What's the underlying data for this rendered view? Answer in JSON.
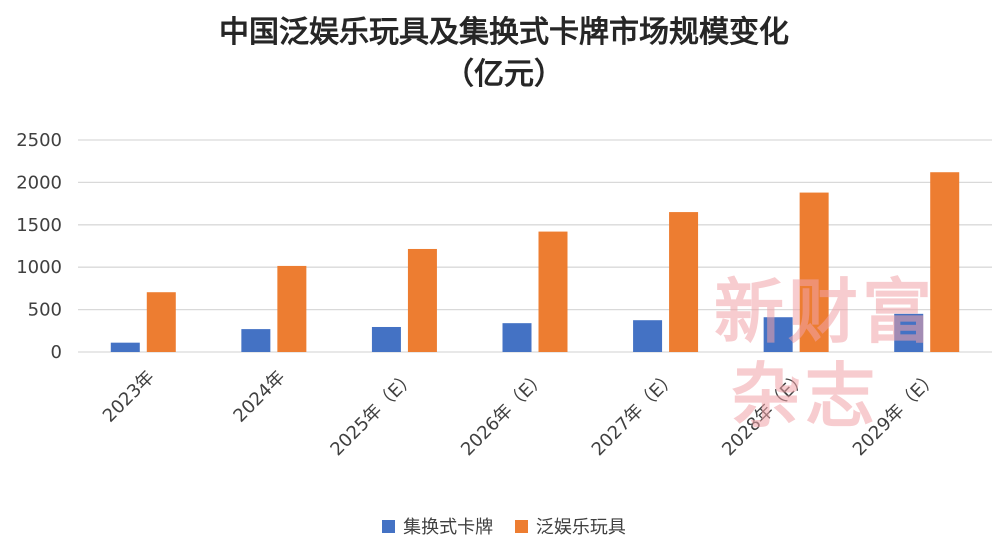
{
  "chart_data": {
    "type": "bar",
    "title": [
      "中国泛娱乐玩具及集换式卡牌市场规模变化",
      "（亿元）"
    ],
    "xlabel": "",
    "ylabel": "",
    "categories": [
      "2023年",
      "2024年",
      "2025年（E）",
      "2026年（E）",
      "2027年（E）",
      "2028年（E）",
      "2029年（E）"
    ],
    "y_ticks": [
      "0",
      "500",
      "1000",
      "1500",
      "2000",
      "2500"
    ],
    "ylim": [
      0,
      2500
    ],
    "grid": true,
    "legend_position": "bottom",
    "series": [
      {
        "name": "集换式卡牌",
        "color": "#4472c4",
        "values": [
          110,
          270,
          295,
          340,
          375,
          410,
          450
        ]
      },
      {
        "name": "泛娱乐玩具",
        "color": "#ed7d31",
        "values": [
          705,
          1015,
          1215,
          1420,
          1650,
          1880,
          2120
        ]
      }
    ]
  },
  "watermark": {
    "line1": "新财富",
    "line2": "杂志"
  }
}
